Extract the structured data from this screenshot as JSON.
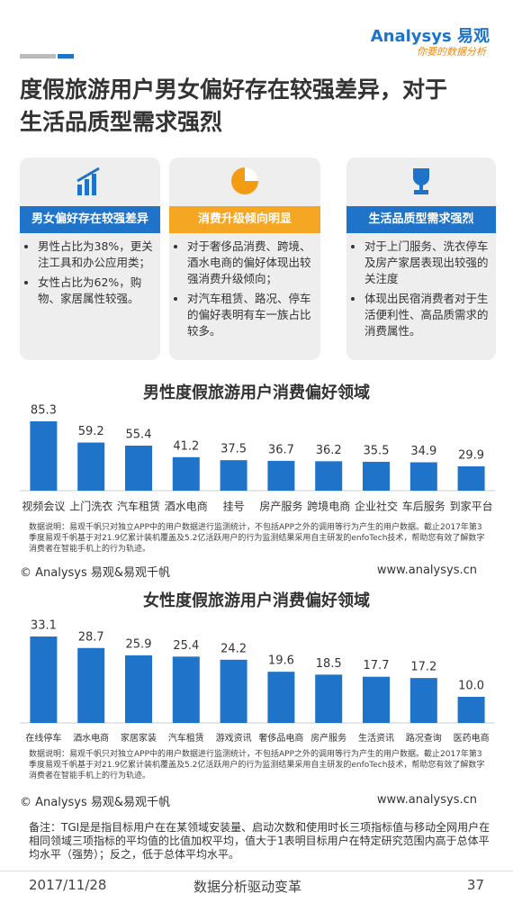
{
  "header": {
    "logo_brand": "Analysys",
    "logo_cn": "易观",
    "logo_slogan": "你要的数据分析",
    "title": "度假旅游用户男女偏好存在较强差异，对于生活品质型需求强烈"
  },
  "cards": [
    {
      "title": "男女偏好存在较强差异",
      "bullets": [
        "男性占比为38%，更关注工具和办公应用类；",
        "女性占比为62%，购物、家居属性较强。"
      ]
    },
    {
      "title": "消费升级倾向明显",
      "bullets": [
        "对于奢侈品消费、跨境、酒水电商的偏好体现出较强消费升级倾向；",
        "对汽车租赁、路况、停车的偏好表明有车一族占比较多。"
      ]
    },
    {
      "title": "生活品质型需求强烈",
      "bullets": [
        "对于上门服务、洗衣停车及房产家居表现出较强的关注度",
        "体现出民宿消费者对于生活便利性、高品质需求的消费属性。"
      ]
    }
  ],
  "chart_data": [
    {
      "type": "bar",
      "title": "男性度假旅游用户消费偏好领域",
      "categories": [
        "视频会议",
        "上门洗衣",
        "汽车租赁",
        "酒水电商",
        "挂号",
        "房产服务",
        "跨境电商",
        "企业社交",
        "车后服务",
        "到家平台"
      ],
      "values": [
        85.3,
        59.2,
        55.4,
        41.2,
        37.5,
        36.7,
        36.2,
        35.5,
        34.9,
        29.9
      ],
      "color": "#1f73c9"
    },
    {
      "type": "bar",
      "title": "女性度假旅游用户消费偏好领域",
      "categories": [
        "在线停车",
        "酒水电商",
        "家居家装",
        "汽车租赁",
        "游戏资讯",
        "奢侈品电商",
        "房产服务",
        "生活资讯",
        "路况查询",
        "医药电商"
      ],
      "values": [
        33.1,
        28.7,
        25.9,
        25.4,
        24.2,
        19.6,
        18.5,
        17.7,
        17.2,
        10.0
      ],
      "value_labels": [
        "33.1",
        "28.7",
        "25.9",
        "25.4",
        "24.2",
        "19.6",
        "18.5",
        "17.7",
        "17.2",
        "10.0"
      ],
      "color": "#1f73c9"
    }
  ],
  "sources": [
    {
      "text": "数据说明：易观千帆只对独立APP中的用户数据进行监测统计，不包括APP之外的调用等行为产生的用户数据。截止2017年第3季度易观千帆基于对21.9亿累计装机覆盖及5.2亿活跃用户的行为监测结果采用自主研发的enfoTech技术，帮助您有效了解数字消费者在智能手机上的行为轨迹。",
      "copyright": "© Analysys 易观&易观千帆",
      "url": "www.analysys.cn"
    },
    {
      "text": "数据说明：易观千帆只对独立APP中的用户数据进行监测统计，不包括APP之外的调用等行为产生的用户数据。截止2017年第3季度易观千帆基于对21.9亿累计装机覆盖及5.2亿活跃用户的行为监测结果采用自主研发的enfoTech技术，帮助您有效了解数字消费者在智能手机上的行为轨迹。",
      "copyright": "© Analysys 易观&易观千帆",
      "url": "www.analysys.cn"
    }
  ],
  "footnote": "备注：TGI是是指目标用户在在某领域安装量、启动次数和使用时长三项指标值与移动全网用户在相同领域三项指标的平均值的比值加权平均，值大于1表明目标用户在特定研究范围内高于总体平均水平（强势）；反之，低于总体平均水平。",
  "footer": {
    "date": "2017/11/28",
    "slogan": "数据分析驱动变革",
    "page": "37"
  }
}
